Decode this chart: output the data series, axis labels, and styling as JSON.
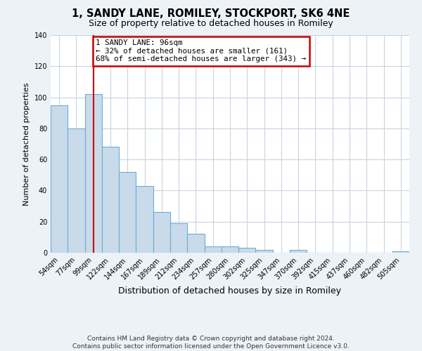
{
  "title": "1, SANDY LANE, ROMILEY, STOCKPORT, SK6 4NE",
  "subtitle": "Size of property relative to detached houses in Romiley",
  "xlabel": "Distribution of detached houses by size in Romiley",
  "ylabel": "Number of detached properties",
  "bar_labels": [
    "54sqm",
    "77sqm",
    "99sqm",
    "122sqm",
    "144sqm",
    "167sqm",
    "189sqm",
    "212sqm",
    "234sqm",
    "257sqm",
    "280sqm",
    "302sqm",
    "325sqm",
    "347sqm",
    "370sqm",
    "392sqm",
    "415sqm",
    "437sqm",
    "460sqm",
    "482sqm",
    "505sqm"
  ],
  "bar_values": [
    95,
    80,
    102,
    68,
    52,
    43,
    26,
    19,
    12,
    4,
    4,
    3,
    2,
    0,
    2,
    0,
    0,
    0,
    0,
    0,
    1
  ],
  "bar_color": "#c9daea",
  "bar_edgecolor": "#6baed6",
  "vline_x_index": 2,
  "vline_color": "#cc0000",
  "ylim": [
    0,
    140
  ],
  "yticks": [
    0,
    20,
    40,
    60,
    80,
    100,
    120,
    140
  ],
  "annotation_title": "1 SANDY LANE: 96sqm",
  "annotation_line1": "← 32% of detached houses are smaller (161)",
  "annotation_line2": "68% of semi-detached houses are larger (343) →",
  "annotation_box_edgecolor": "#cc0000",
  "footer_line1": "Contains HM Land Registry data © Crown copyright and database right 2024.",
  "footer_line2": "Contains public sector information licensed under the Open Government Licence v3.0.",
  "background_color": "#edf2f7",
  "plot_bg_color": "#ffffff",
  "grid_color": "#c8d4e0",
  "title_fontsize": 10.5,
  "subtitle_fontsize": 9,
  "ylabel_fontsize": 8,
  "xlabel_fontsize": 9,
  "tick_fontsize": 7,
  "footer_fontsize": 6.5
}
